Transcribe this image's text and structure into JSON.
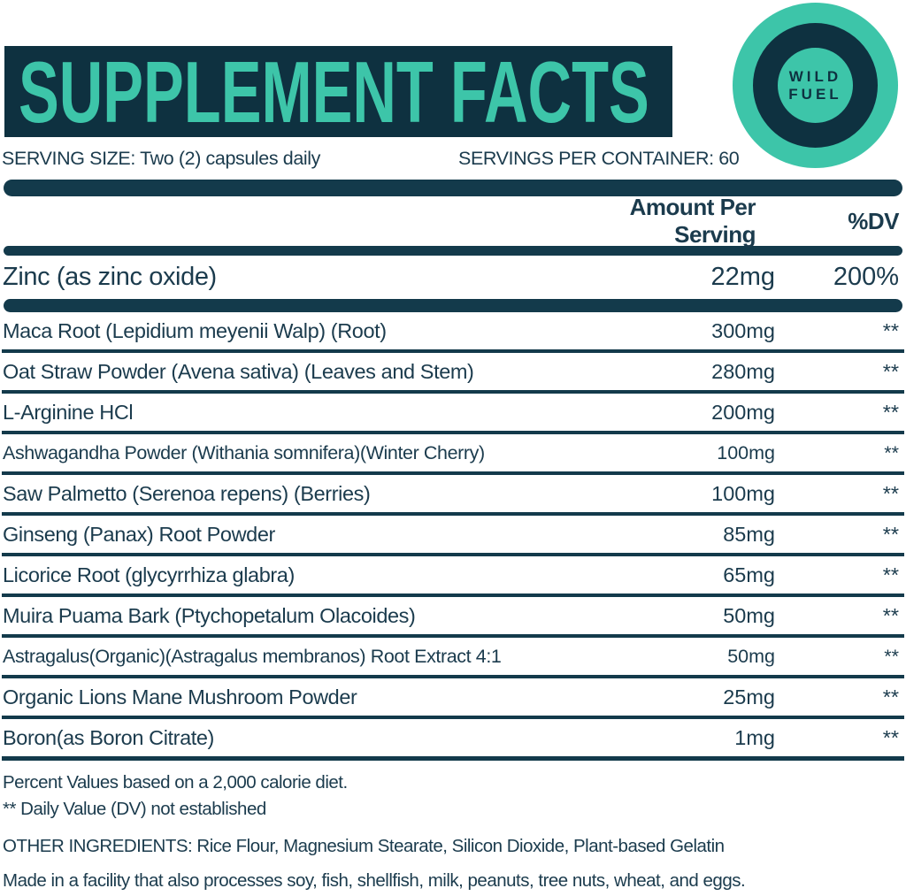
{
  "colors": {
    "banner_background": "#0E3140",
    "bar_color": "#133A4B",
    "accent_teal": "#3DC5A9",
    "text_color": "#1B3B4D"
  },
  "header": {
    "title": "SUPPLEMENT FACTS",
    "logo": {
      "line1": "WILD",
      "line2": "FUEL"
    }
  },
  "serving": {
    "size": "SERVING SIZE: Two (2) capsules daily",
    "per_container": "SERVINGS PER CONTAINER: 60"
  },
  "columns": {
    "amount": "Amount Per Serving",
    "dv": "%DV"
  },
  "rows": {
    "zinc": {
      "name": "Zinc (as zinc oxide)",
      "amount": "22mg",
      "dv": "200%"
    },
    "ingredients": [
      {
        "name": "Maca Root (Lepidium meyenii Walp) (Root)",
        "amount": "300mg",
        "dv": "**"
      },
      {
        "name": "Oat Straw Powder (Avena sativa) (Leaves and Stem)",
        "amount": "280mg",
        "dv": "**"
      },
      {
        "name": "L-Arginine HCl",
        "amount": "200mg",
        "dv": "**"
      },
      {
        "name": "Ashwagandha Powder (Withania somnifera)(Winter Cherry)",
        "amount": "100mg",
        "dv": "**"
      },
      {
        "name": "Saw Palmetto (Serenoa repens) (Berries)",
        "amount": "100mg",
        "dv": "**"
      },
      {
        "name": "Ginseng (Panax) Root Powder",
        "amount": "85mg",
        "dv": "**"
      },
      {
        "name": "Licorice Root (glycyrrhiza glabra)",
        "amount": "65mg",
        "dv": "**"
      },
      {
        "name": "Muira Puama Bark (Ptychopetalum Olacoides)",
        "amount": "50mg",
        "dv": "**"
      },
      {
        "name": "Astragalus(Organic)(Astragalus membranos) Root Extract 4:1",
        "amount": "50mg",
        "dv": "**"
      },
      {
        "name": "Organic Lions Mane Mushroom Powder",
        "amount": "25mg",
        "dv": "**"
      },
      {
        "name": "Boron(as Boron Citrate)",
        "amount": "1mg",
        "dv": "**"
      }
    ]
  },
  "footnotes": {
    "percent_values": "Percent Values based on a 2,000 calorie diet.",
    "daily_value": "** Daily Value (DV) not established",
    "other_ingredients": "OTHER INGREDIENTS: Rice Flour, Magnesium Stearate, Silicon Dioxide, Plant-based Gelatin",
    "allergen": "Made in a facility that also processes soy, fish, shellfish, milk, peanuts, tree nuts, wheat, and eggs."
  }
}
